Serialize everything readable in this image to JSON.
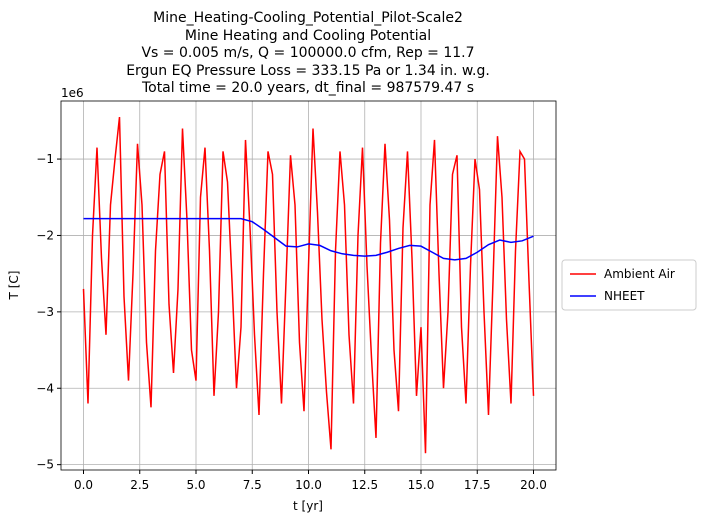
{
  "chart_data": {
    "type": "line",
    "title": [
      "Mine_Heating-Cooling_Potential_Pilot-Scale2",
      "Mine Heating and Cooling Potential",
      "Vs = 0.005 m/s, Q = 100000.0 cfm, Rep = 11.7",
      "Ergun EQ Pressure Loss = 333.15 Pa or 1.34 in. w.g.",
      "Total time = 20.0 years, dt_final = 987579.47 s"
    ],
    "xlabel": "t [yr]",
    "ylabel": "T [C]",
    "y_offset_label": "1e6",
    "xlim": [
      -1.0,
      21.0
    ],
    "ylim": [
      -5.07,
      -0.24
    ],
    "xticks": [
      {
        "value": 0,
        "label": "0.0"
      },
      2.5,
      {
        "value": 5,
        "label": "5.0"
      },
      7.5,
      {
        "value": 10,
        "label": "10.0"
      },
      12.5,
      {
        "value": 15,
        "label": "15.0"
      },
      17.5,
      {
        "value": 20,
        "label": "20.0"
      }
    ],
    "yticks": [
      {
        "value": -5,
        "label": "−5"
      },
      {
        "value": -4,
        "label": "−4"
      },
      {
        "value": -3,
        "label": "−3"
      },
      {
        "value": -2,
        "label": "−2"
      },
      {
        "value": -1,
        "label": "−1"
      }
    ],
    "grid": true,
    "legend": "outside right",
    "series": [
      {
        "name": "Ambient Air",
        "color": "#ff0000",
        "x": [
          0,
          0.2,
          0.4,
          0.6,
          0.8,
          1,
          1.2,
          1.4,
          1.6,
          1.8,
          2,
          2.2,
          2.4,
          2.6,
          2.8,
          3,
          3.2,
          3.4,
          3.6,
          3.8,
          4,
          4.2,
          4.4,
          4.6,
          4.8,
          5,
          5.2,
          5.4,
          5.6,
          5.8,
          6,
          6.2,
          6.4,
          6.6,
          6.8,
          7,
          7.2,
          7.4,
          7.6,
          7.8,
          8,
          8.2,
          8.4,
          8.6,
          8.8,
          9,
          9.2,
          9.4,
          9.6,
          9.8,
          10,
          10.2,
          10.4,
          10.6,
          10.8,
          11,
          11.2,
          11.4,
          11.6,
          11.8,
          12,
          12.2,
          12.4,
          12.6,
          12.8,
          13,
          13.2,
          13.4,
          13.6,
          13.8,
          14,
          14.2,
          14.4,
          14.6,
          14.8,
          15,
          15.2,
          15.4,
          15.6,
          15.8,
          16,
          16.2,
          16.4,
          16.6,
          16.8,
          17,
          17.2,
          17.4,
          17.6,
          17.8,
          18,
          18.2,
          18.4,
          18.6,
          18.8,
          19,
          19.2,
          19.4,
          19.6,
          19.8,
          20
        ],
        "values": [
          -2.7,
          -4.2,
          -2.0,
          -0.85,
          -2.3,
          -3.3,
          -1.6,
          -1.0,
          -0.45,
          -2.8,
          -3.9,
          -2.5,
          -0.8,
          -1.6,
          -3.4,
          -4.25,
          -2.2,
          -1.2,
          -0.9,
          -2.9,
          -3.8,
          -2.7,
          -0.6,
          -1.8,
          -3.5,
          -3.9,
          -1.5,
          -0.85,
          -2.2,
          -4.1,
          -3.0,
          -0.9,
          -1.3,
          -2.6,
          -4.0,
          -3.2,
          -0.75,
          -1.9,
          -3.3,
          -4.35,
          -2.5,
          -0.9,
          -1.2,
          -3.0,
          -4.2,
          -2.6,
          -0.95,
          -1.6,
          -3.4,
          -4.3,
          -2.4,
          -0.6,
          -1.7,
          -3.1,
          -4.05,
          -4.8,
          -2.2,
          -0.9,
          -1.6,
          -3.3,
          -4.2,
          -2.0,
          -0.85,
          -2.4,
          -3.6,
          -4.65,
          -2.1,
          -0.8,
          -1.8,
          -3.5,
          -4.3,
          -1.9,
          -0.9,
          -2.3,
          -4.1,
          -3.2,
          -4.85,
          -1.6,
          -0.75,
          -2.5,
          -4.0,
          -3.0,
          -1.2,
          -0.95,
          -3.2,
          -4.2,
          -2.4,
          -1.0,
          -1.4,
          -3.0,
          -4.35,
          -2.6,
          -0.7,
          -1.5,
          -3.1,
          -4.2,
          -2.2,
          -0.9,
          -1.0,
          -2.6,
          -4.1
        ]
      },
      {
        "name": "NHEET",
        "color": "#0000ff",
        "x": [
          0,
          7,
          7.5,
          8,
          8.5,
          9,
          9.5,
          10,
          10.5,
          11,
          11.5,
          12,
          12.5,
          13,
          13.5,
          14,
          14.5,
          15,
          15.5,
          16,
          16.5,
          17,
          17.5,
          18,
          18.5,
          19,
          19.5,
          20
        ],
        "values": [
          -1.78,
          -1.78,
          -1.82,
          -1.92,
          -2.03,
          -2.14,
          -2.15,
          -2.11,
          -2.13,
          -2.2,
          -2.24,
          -2.26,
          -2.27,
          -2.26,
          -2.22,
          -2.17,
          -2.13,
          -2.14,
          -2.22,
          -2.3,
          -2.32,
          -2.3,
          -2.22,
          -2.12,
          -2.06,
          -2.09,
          -2.07,
          -2.01
        ]
      }
    ]
  }
}
